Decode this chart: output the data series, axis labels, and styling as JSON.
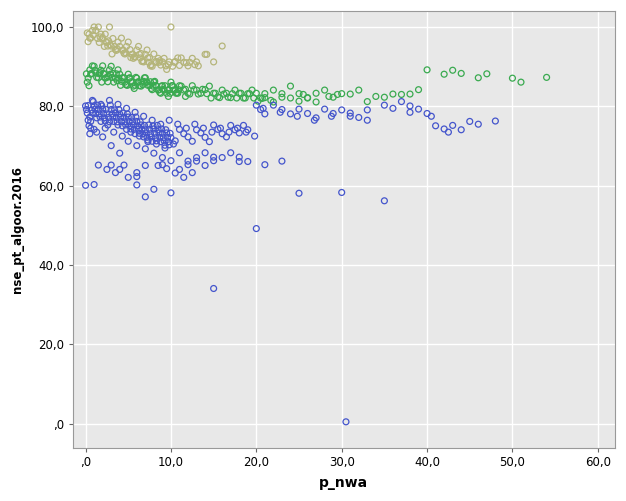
{
  "title": "",
  "xlabel": "p_nwa",
  "ylabel": "nse_pt_algoor.2016",
  "xlim": [
    -1.5,
    62
  ],
  "ylim": [
    -6,
    104
  ],
  "xticks": [
    0,
    10,
    20,
    30,
    40,
    50,
    60
  ],
  "yticks": [
    0,
    20,
    40,
    60,
    80,
    100
  ],
  "xtick_labels": [
    ",0",
    "10,0",
    "20,0",
    "30,0",
    "40,0",
    "50,0",
    "60,0"
  ],
  "ytick_labels": [
    ",0",
    "20,0",
    "40,0",
    "60,0",
    "80,0",
    "100,0"
  ],
  "background_color": "#ffffff",
  "plot_bg_color": "#e8e8e8",
  "grid_color": "#ffffff",
  "marker_size": 18,
  "marker_linewidth": 0.9,
  "olive_color": "#b5b57a",
  "green_color": "#3aaa50",
  "blue_color": "#4455cc",
  "olive_points": [
    [
      0.2,
      98.5
    ],
    [
      0.5,
      97.2
    ],
    [
      1.0,
      100
    ],
    [
      1.2,
      99.1
    ],
    [
      1.5,
      100
    ],
    [
      2.0,
      97.3
    ],
    [
      2.3,
      98.2
    ],
    [
      2.5,
      96.1
    ],
    [
      2.8,
      100
    ],
    [
      3.0,
      95.2
    ],
    [
      3.2,
      97.1
    ],
    [
      3.5,
      94.3
    ],
    [
      3.8,
      96.2
    ],
    [
      4.0,
      95.1
    ],
    [
      4.2,
      97.2
    ],
    [
      4.5,
      93.4
    ],
    [
      4.8,
      95.1
    ],
    [
      5.0,
      96.2
    ],
    [
      5.2,
      94.3
    ],
    [
      5.5,
      93.1
    ],
    [
      5.8,
      92.4
    ],
    [
      6.0,
      94.2
    ],
    [
      6.2,
      95.1
    ],
    [
      6.5,
      93.3
    ],
    [
      6.8,
      91.2
    ],
    [
      7.0,
      93.1
    ],
    [
      7.2,
      94.2
    ],
    [
      7.5,
      92.3
    ],
    [
      7.8,
      90.1
    ],
    [
      8.0,
      93.2
    ],
    [
      8.2,
      91.3
    ],
    [
      8.5,
      92.1
    ],
    [
      8.8,
      90.4
    ],
    [
      9.0,
      91.2
    ],
    [
      9.2,
      92.1
    ],
    [
      9.5,
      89.3
    ],
    [
      9.8,
      91.2
    ],
    [
      10.0,
      100
    ],
    [
      10.2,
      90.1
    ],
    [
      10.5,
      91.3
    ],
    [
      10.8,
      92.2
    ],
    [
      11.0,
      90.3
    ],
    [
      11.5,
      91.1
    ],
    [
      12.0,
      90.2
    ],
    [
      12.5,
      92.1
    ],
    [
      13.0,
      91.2
    ],
    [
      14.0,
      93.1
    ],
    [
      15.0,
      91.2
    ],
    [
      0.3,
      96.3
    ],
    [
      0.8,
      99.1
    ],
    [
      1.8,
      98.2
    ],
    [
      2.2,
      95.1
    ],
    [
      3.1,
      93.2
    ],
    [
      4.3,
      94.1
    ],
    [
      5.3,
      92.3
    ],
    [
      6.3,
      93.1
    ],
    [
      7.3,
      92.2
    ],
    [
      8.3,
      91.1
    ],
    [
      0.6,
      97.2
    ],
    [
      1.6,
      96.1
    ],
    [
      2.6,
      95.2
    ],
    [
      3.6,
      94.1
    ],
    [
      4.6,
      93.2
    ],
    [
      5.6,
      92.1
    ],
    [
      6.6,
      91.3
    ],
    [
      7.6,
      90.2
    ],
    [
      8.6,
      91.1
    ],
    [
      0.4,
      98.2
    ],
    [
      1.4,
      97.1
    ],
    [
      2.4,
      96.2
    ],
    [
      3.4,
      95.1
    ],
    [
      4.4,
      94.2
    ],
    [
      5.4,
      93.1
    ],
    [
      6.4,
      92.2
    ],
    [
      7.4,
      91.1
    ],
    [
      9.4,
      90.2
    ],
    [
      10.4,
      91.1
    ],
    [
      11.2,
      92.2
    ],
    [
      12.2,
      91.1
    ],
    [
      13.2,
      90.2
    ],
    [
      14.2,
      93.1
    ],
    [
      16.0,
      95.2
    ],
    [
      1.7,
      97.5
    ],
    [
      2.7,
      96.5
    ],
    [
      3.7,
      94.5
    ],
    [
      4.7,
      93.5
    ],
    [
      5.7,
      92.5
    ],
    [
      6.7,
      91.5
    ],
    [
      7.7,
      90.5
    ],
    [
      8.7,
      91.5
    ],
    [
      9.7,
      90.5
    ],
    [
      0.9,
      98.0
    ],
    [
      1.9,
      97.0
    ],
    [
      2.9,
      95.5
    ],
    [
      11.8,
      91.0
    ],
    [
      12.8,
      90.5
    ]
  ],
  "green_points": [
    [
      0.1,
      88.2
    ],
    [
      0.3,
      87.1
    ],
    [
      0.5,
      89.2
    ],
    [
      0.7,
      88.3
    ],
    [
      1.0,
      90.1
    ],
    [
      1.2,
      88.4
    ],
    [
      1.5,
      87.2
    ],
    [
      1.8,
      89.1
    ],
    [
      2.0,
      90.2
    ],
    [
      2.2,
      88.1
    ],
    [
      2.5,
      87.3
    ],
    [
      2.8,
      89.2
    ],
    [
      3.0,
      90.1
    ],
    [
      3.2,
      88.3
    ],
    [
      3.5,
      87.1
    ],
    [
      3.8,
      89.2
    ],
    [
      4.0,
      88.1
    ],
    [
      4.2,
      86.3
    ],
    [
      4.5,
      87.2
    ],
    [
      4.8,
      85.4
    ],
    [
      5.0,
      88.1
    ],
    [
      5.2,
      87.2
    ],
    [
      5.5,
      86.1
    ],
    [
      5.8,
      85.3
    ],
    [
      6.0,
      87.1
    ],
    [
      6.2,
      86.2
    ],
    [
      6.5,
      85.1
    ],
    [
      6.8,
      86.3
    ],
    [
      7.0,
      87.2
    ],
    [
      7.2,
      86.1
    ],
    [
      7.5,
      85.3
    ],
    [
      7.8,
      84.2
    ],
    [
      8.0,
      86.1
    ],
    [
      8.2,
      85.3
    ],
    [
      8.5,
      84.1
    ],
    [
      8.8,
      83.3
    ],
    [
      9.0,
      85.2
    ],
    [
      9.2,
      84.1
    ],
    [
      9.5,
      83.3
    ],
    [
      9.8,
      84.2
    ],
    [
      10.0,
      86.1
    ],
    [
      10.2,
      85.2
    ],
    [
      10.5,
      84.1
    ],
    [
      10.8,
      83.3
    ],
    [
      11.0,
      85.2
    ],
    [
      11.5,
      84.1
    ],
    [
      12.0,
      83.3
    ],
    [
      12.5,
      85.2
    ],
    [
      13.0,
      84.1
    ],
    [
      13.5,
      83.3
    ],
    [
      14.0,
      84.2
    ],
    [
      14.5,
      85.1
    ],
    [
      15.0,
      83.3
    ],
    [
      15.5,
      82.4
    ],
    [
      16.0,
      84.1
    ],
    [
      16.5,
      83.3
    ],
    [
      17.0,
      82.2
    ],
    [
      17.5,
      84.1
    ],
    [
      18.0,
      83.3
    ],
    [
      18.5,
      82.1
    ],
    [
      19.0,
      83.2
    ],
    [
      19.5,
      84.1
    ],
    [
      20.0,
      83.3
    ],
    [
      20.5,
      82.1
    ],
    [
      21.0,
      83.2
    ],
    [
      22.0,
      84.1
    ],
    [
      23.0,
      82.3
    ],
    [
      24.0,
      85.1
    ],
    [
      25.0,
      83.2
    ],
    [
      26.0,
      82.1
    ],
    [
      27.0,
      83.3
    ],
    [
      28.0,
      84.1
    ],
    [
      30.0,
      83.2
    ],
    [
      32.0,
      84.1
    ],
    [
      35.0,
      82.3
    ],
    [
      38.0,
      83.1
    ],
    [
      40.0,
      89.2
    ],
    [
      42.0,
      88.1
    ],
    [
      44.0,
      88.3
    ],
    [
      46.0,
      87.2
    ],
    [
      50.0,
      87.1
    ],
    [
      54.0,
      87.3
    ],
    [
      0.2,
      86.1
    ],
    [
      0.4,
      85.2
    ],
    [
      0.6,
      88.1
    ],
    [
      0.8,
      90.2
    ],
    [
      1.1,
      89.1
    ],
    [
      1.3,
      87.3
    ],
    [
      1.6,
      88.2
    ],
    [
      1.9,
      86.1
    ],
    [
      2.1,
      88.3
    ],
    [
      2.3,
      87.1
    ],
    [
      2.6,
      86.2
    ],
    [
      2.9,
      88.1
    ],
    [
      3.1,
      87.3
    ],
    [
      3.3,
      86.1
    ],
    [
      3.6,
      88.2
    ],
    [
      3.9,
      87.1
    ],
    [
      4.1,
      85.3
    ],
    [
      4.3,
      87.2
    ],
    [
      4.6,
      86.1
    ],
    [
      4.9,
      85.3
    ],
    [
      5.1,
      87.1
    ],
    [
      5.3,
      86.2
    ],
    [
      5.6,
      85.1
    ],
    [
      5.9,
      87.3
    ],
    [
      6.1,
      86.1
    ],
    [
      6.3,
      85.2
    ],
    [
      6.6,
      86.1
    ],
    [
      6.9,
      87.2
    ],
    [
      7.1,
      86.1
    ],
    [
      7.3,
      85.3
    ],
    [
      7.6,
      86.2
    ],
    [
      7.9,
      85.1
    ],
    [
      8.1,
      86.3
    ],
    [
      8.3,
      85.1
    ],
    [
      8.6,
      84.2
    ],
    [
      8.9,
      85.1
    ],
    [
      9.1,
      84.3
    ],
    [
      9.3,
      85.2
    ],
    [
      9.6,
      84.1
    ],
    [
      9.9,
      83.3
    ],
    [
      10.1,
      85.2
    ],
    [
      10.3,
      84.1
    ],
    [
      10.6,
      83.3
    ],
    [
      10.9,
      84.2
    ],
    [
      11.2,
      85.1
    ],
    [
      11.7,
      84.3
    ],
    [
      12.2,
      83.1
    ],
    [
      12.7,
      84.2
    ],
    [
      13.2,
      83.1
    ],
    [
      13.7,
      84.3
    ],
    [
      14.2,
      83.2
    ],
    [
      14.7,
      82.1
    ],
    [
      15.2,
      83.3
    ],
    [
      15.7,
      82.2
    ],
    [
      16.2,
      83.1
    ],
    [
      16.7,
      82.3
    ],
    [
      17.2,
      83.2
    ],
    [
      17.7,
      82.1
    ],
    [
      18.2,
      83.3
    ],
    [
      18.7,
      82.1
    ],
    [
      19.2,
      83.2
    ],
    [
      19.7,
      82.1
    ],
    [
      20.2,
      81.3
    ],
    [
      21.0,
      82.2
    ],
    [
      22.0,
      81.1
    ],
    [
      23.0,
      83.2
    ],
    [
      24.0,
      82.1
    ],
    [
      25.0,
      81.3
    ],
    [
      26.0,
      82.2
    ],
    [
      27.0,
      81.1
    ],
    [
      29.0,
      82.3
    ],
    [
      31.0,
      83.1
    ],
    [
      33.0,
      81.2
    ],
    [
      36.0,
      83.1
    ],
    [
      39.0,
      84.2
    ],
    [
      43.0,
      89.1
    ],
    [
      47.0,
      88.2
    ],
    [
      51.0,
      86.1
    ],
    [
      1.7,
      88.5
    ],
    [
      2.7,
      87.5
    ],
    [
      3.7,
      86.5
    ],
    [
      4.7,
      85.5
    ],
    [
      5.7,
      84.5
    ],
    [
      6.7,
      85.5
    ],
    [
      7.7,
      84.5
    ],
    [
      8.7,
      83.5
    ],
    [
      9.7,
      82.5
    ],
    [
      10.7,
      83.5
    ],
    [
      11.7,
      82.5
    ],
    [
      20.7,
      82.0
    ],
    [
      21.7,
      81.5
    ],
    [
      25.5,
      83.0
    ],
    [
      28.5,
      82.5
    ],
    [
      29.5,
      83.0
    ],
    [
      34.0,
      82.5
    ],
    [
      37.0,
      83.0
    ]
  ],
  "blue_points": [
    [
      0.0,
      80.1
    ],
    [
      0.1,
      79.2
    ],
    [
      0.2,
      78.3
    ],
    [
      0.3,
      80.2
    ],
    [
      0.4,
      75.1
    ],
    [
      0.5,
      77.3
    ],
    [
      0.6,
      76.2
    ],
    [
      0.7,
      79.1
    ],
    [
      0.8,
      78.3
    ],
    [
      0.9,
      81.2
    ],
    [
      1.0,
      80.1
    ],
    [
      1.1,
      79.3
    ],
    [
      1.2,
      78.2
    ],
    [
      1.3,
      77.1
    ],
    [
      1.4,
      80.3
    ],
    [
      1.5,
      79.2
    ],
    [
      1.6,
      78.1
    ],
    [
      1.7,
      77.3
    ],
    [
      1.8,
      76.2
    ],
    [
      1.9,
      80.1
    ],
    [
      2.0,
      79.3
    ],
    [
      2.1,
      78.2
    ],
    [
      2.2,
      77.1
    ],
    [
      2.3,
      76.3
    ],
    [
      2.4,
      79.2
    ],
    [
      2.5,
      78.1
    ],
    [
      2.6,
      75.3
    ],
    [
      2.7,
      77.2
    ],
    [
      2.8,
      76.1
    ],
    [
      2.9,
      80.3
    ],
    [
      3.0,
      79.2
    ],
    [
      3.1,
      78.1
    ],
    [
      3.2,
      77.3
    ],
    [
      3.3,
      76.2
    ],
    [
      3.4,
      79.1
    ],
    [
      3.5,
      78.3
    ],
    [
      3.6,
      77.2
    ],
    [
      3.7,
      76.1
    ],
    [
      3.8,
      75.3
    ],
    [
      3.9,
      79.2
    ],
    [
      4.0,
      78.1
    ],
    [
      4.1,
      77.3
    ],
    [
      4.2,
      76.2
    ],
    [
      4.3,
      75.1
    ],
    [
      4.4,
      78.3
    ],
    [
      4.5,
      77.2
    ],
    [
      4.6,
      76.1
    ],
    [
      4.7,
      75.3
    ],
    [
      4.8,
      74.2
    ],
    [
      4.9,
      78.1
    ],
    [
      5.0,
      77.3
    ],
    [
      5.1,
      76.2
    ],
    [
      5.2,
      75.1
    ],
    [
      5.3,
      74.3
    ],
    [
      5.4,
      77.2
    ],
    [
      5.5,
      76.1
    ],
    [
      5.6,
      75.3
    ],
    [
      5.7,
      74.2
    ],
    [
      5.8,
      73.1
    ],
    [
      5.9,
      77.3
    ],
    [
      6.0,
      76.2
    ],
    [
      6.1,
      75.1
    ],
    [
      6.2,
      74.3
    ],
    [
      6.3,
      73.2
    ],
    [
      6.4,
      76.1
    ],
    [
      6.5,
      75.3
    ],
    [
      6.6,
      74.2
    ],
    [
      6.7,
      73.1
    ],
    [
      6.8,
      72.3
    ],
    [
      6.9,
      75.2
    ],
    [
      7.0,
      74.1
    ],
    [
      7.1,
      73.3
    ],
    [
      7.2,
      72.2
    ],
    [
      7.3,
      71.1
    ],
    [
      7.4,
      75.3
    ],
    [
      7.5,
      74.2
    ],
    [
      7.6,
      73.1
    ],
    [
      7.7,
      72.3
    ],
    [
      7.8,
      71.2
    ],
    [
      7.9,
      75.1
    ],
    [
      8.0,
      74.3
    ],
    [
      8.1,
      73.2
    ],
    [
      8.2,
      72.1
    ],
    [
      8.3,
      71.3
    ],
    [
      8.4,
      75.2
    ],
    [
      8.5,
      74.1
    ],
    [
      8.6,
      73.3
    ],
    [
      8.7,
      72.2
    ],
    [
      8.8,
      71.1
    ],
    [
      8.9,
      74.3
    ],
    [
      9.0,
      73.2
    ],
    [
      9.1,
      72.1
    ],
    [
      9.2,
      71.3
    ],
    [
      9.3,
      70.2
    ],
    [
      9.4,
      74.1
    ],
    [
      9.5,
      73.3
    ],
    [
      9.6,
      72.2
    ],
    [
      9.7,
      71.1
    ],
    [
      9.8,
      70.3
    ],
    [
      9.9,
      73.2
    ],
    [
      10.0,
      72.1
    ],
    [
      10.5,
      71.3
    ],
    [
      11.0,
      74.2
    ],
    [
      11.5,
      73.1
    ],
    [
      12.0,
      72.3
    ],
    [
      12.5,
      71.2
    ],
    [
      13.0,
      74.1
    ],
    [
      13.5,
      73.3
    ],
    [
      14.0,
      72.2
    ],
    [
      14.5,
      71.1
    ],
    [
      15.0,
      75.3
    ],
    [
      15.5,
      74.2
    ],
    [
      16.0,
      73.1
    ],
    [
      16.5,
      72.3
    ],
    [
      17.0,
      75.2
    ],
    [
      17.5,
      74.1
    ],
    [
      18.0,
      73.3
    ],
    [
      18.5,
      75.2
    ],
    [
      19.0,
      74.1
    ],
    [
      20.0,
      80.3
    ],
    [
      20.5,
      79.2
    ],
    [
      21.0,
      78.1
    ],
    [
      22.0,
      80.3
    ],
    [
      23.0,
      79.2
    ],
    [
      24.0,
      78.1
    ],
    [
      25.0,
      79.3
    ],
    [
      26.0,
      78.2
    ],
    [
      27.0,
      77.1
    ],
    [
      28.0,
      79.3
    ],
    [
      29.0,
      78.2
    ],
    [
      30.0,
      79.1
    ],
    [
      31.0,
      78.3
    ],
    [
      32.0,
      77.2
    ],
    [
      33.0,
      79.1
    ],
    [
      35.0,
      80.3
    ],
    [
      37.0,
      81.2
    ],
    [
      38.0,
      80.1
    ],
    [
      39.0,
      79.3
    ],
    [
      40.0,
      78.2
    ],
    [
      41.0,
      75.1
    ],
    [
      42.0,
      74.3
    ],
    [
      45.0,
      76.2
    ],
    [
      0.0,
      60.1
    ],
    [
      1.0,
      60.3
    ],
    [
      3.0,
      65.2
    ],
    [
      4.0,
      64.1
    ],
    [
      6.0,
      63.3
    ],
    [
      7.0,
      57.2
    ],
    [
      8.0,
      59.1
    ],
    [
      9.0,
      65.3
    ],
    [
      10.0,
      58.2
    ],
    [
      11.0,
      64.1
    ],
    [
      12.0,
      65.3
    ],
    [
      13.0,
      66.2
    ],
    [
      14.0,
      65.1
    ],
    [
      15.0,
      66.3
    ],
    [
      18.0,
      66.1
    ],
    [
      20.0,
      49.2
    ],
    [
      25.0,
      58.1
    ],
    [
      30.0,
      58.3
    ],
    [
      35.0,
      56.2
    ],
    [
      15.0,
      34.1
    ],
    [
      6.0,
      60.2
    ],
    [
      7.0,
      65.1
    ],
    [
      30.5,
      0.5
    ],
    [
      5.0,
      71.2
    ],
    [
      6.0,
      70.1
    ],
    [
      7.0,
      69.3
    ],
    [
      8.0,
      68.2
    ],
    [
      9.0,
      67.1
    ],
    [
      10.0,
      66.3
    ],
    [
      4.0,
      68.2
    ],
    [
      3.0,
      70.1
    ],
    [
      2.0,
      72.3
    ],
    [
      1.0,
      74.2
    ],
    [
      0.5,
      73.1
    ],
    [
      11.0,
      68.3
    ],
    [
      12.0,
      66.2
    ],
    [
      13.0,
      67.1
    ],
    [
      14.0,
      68.3
    ],
    [
      15.0,
      67.2
    ],
    [
      16.0,
      67.1
    ],
    [
      17.0,
      68.3
    ],
    [
      18.0,
      67.2
    ],
    [
      19.0,
      66.1
    ],
    [
      21.0,
      65.3
    ],
    [
      23.0,
      66.2
    ],
    [
      5.0,
      62.1
    ],
    [
      6.0,
      62.3
    ],
    [
      4.5,
      65.2
    ],
    [
      8.5,
      65.1
    ],
    [
      9.5,
      64.3
    ],
    [
      10.5,
      63.2
    ],
    [
      11.5,
      62.1
    ],
    [
      12.5,
      63.3
    ],
    [
      1.5,
      65.2
    ],
    [
      2.5,
      64.1
    ],
    [
      3.5,
      63.3
    ],
    [
      43.0,
      75.2
    ],
    [
      44.0,
      74.1
    ],
    [
      48.0,
      76.3
    ],
    [
      0.3,
      76.5
    ],
    [
      0.6,
      74.5
    ],
    [
      1.3,
      73.5
    ],
    [
      2.3,
      74.5
    ],
    [
      3.3,
      73.5
    ],
    [
      4.3,
      72.5
    ],
    [
      5.3,
      73.5
    ],
    [
      6.3,
      72.5
    ],
    [
      7.3,
      71.5
    ],
    [
      8.3,
      70.5
    ],
    [
      9.3,
      69.5
    ],
    [
      10.3,
      70.5
    ],
    [
      0.8,
      81.5
    ],
    [
      1.8,
      80.5
    ],
    [
      2.8,
      81.5
    ],
    [
      3.8,
      80.5
    ],
    [
      4.8,
      79.5
    ],
    [
      5.8,
      78.5
    ],
    [
      6.8,
      77.5
    ],
    [
      7.8,
      76.5
    ],
    [
      8.8,
      75.5
    ],
    [
      9.8,
      76.5
    ],
    [
      10.8,
      75.5
    ],
    [
      11.8,
      74.5
    ],
    [
      12.8,
      75.5
    ],
    [
      13.8,
      74.5
    ],
    [
      14.8,
      73.5
    ],
    [
      15.8,
      74.5
    ],
    [
      16.8,
      73.5
    ],
    [
      17.8,
      74.5
    ],
    [
      18.8,
      73.5
    ],
    [
      19.8,
      72.5
    ],
    [
      20.8,
      79.5
    ],
    [
      22.8,
      78.5
    ],
    [
      24.8,
      77.5
    ],
    [
      26.8,
      76.5
    ],
    [
      28.8,
      77.5
    ],
    [
      31.0,
      77.5
    ],
    [
      33.0,
      76.5
    ],
    [
      36.0,
      79.5
    ],
    [
      38.0,
      78.5
    ],
    [
      40.5,
      77.5
    ],
    [
      42.5,
      73.5
    ],
    [
      46.0,
      75.5
    ]
  ]
}
